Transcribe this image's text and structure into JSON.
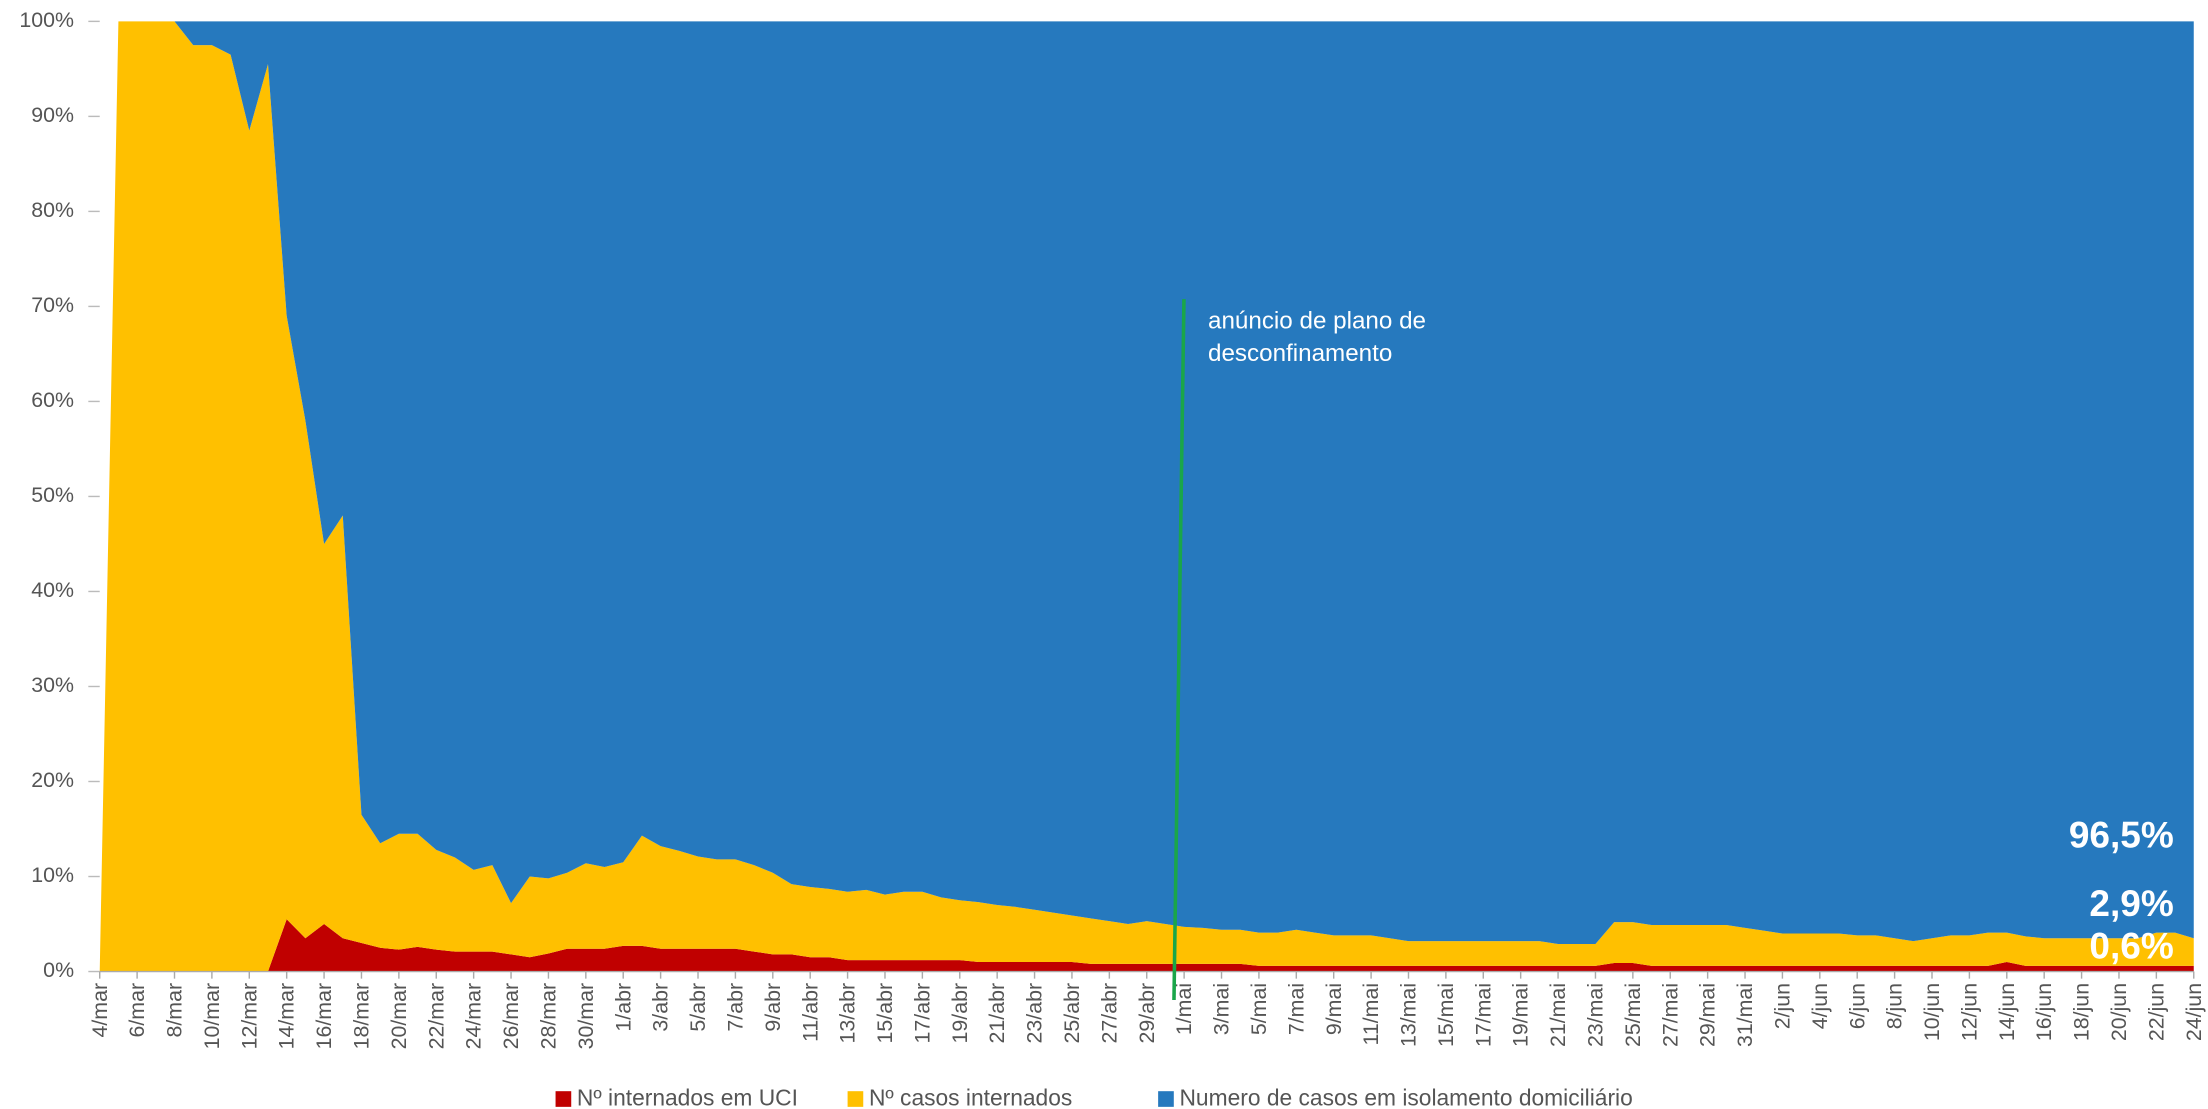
{
  "chart_data": {
    "type": "stacked_area_100",
    "categories": [
      "4/mar",
      null,
      "6/mar",
      null,
      "8/mar",
      null,
      "10/mar",
      null,
      "12/mar",
      null,
      "14/mar",
      null,
      "16/mar",
      null,
      "18/mar",
      null,
      "20/mar",
      null,
      "22/mar",
      null,
      "24/mar",
      null,
      "26/mar",
      null,
      "28/mar",
      null,
      "30/mar",
      null,
      "1/abr",
      null,
      "3/abr",
      null,
      "5/abr",
      null,
      "7/abr",
      null,
      "9/abr",
      null,
      "11/abr",
      null,
      "13/abr",
      null,
      "15/abr",
      null,
      "17/abr",
      null,
      "19/abr",
      null,
      "21/abr",
      null,
      "23/abr",
      null,
      "25/abr",
      null,
      "27/abr",
      null,
      "29/abr",
      null,
      "1/mai",
      null,
      "3/mai",
      null,
      "5/mai",
      null,
      "7/mai",
      null,
      "9/mai",
      null,
      "11/mai",
      null,
      "13/mai",
      null,
      "15/mai",
      null,
      "17/mai",
      null,
      "19/mai",
      null,
      "21/mai",
      null,
      "23/mai",
      null,
      "25/mai",
      null,
      "27/mai",
      null,
      "29/mai",
      null,
      "31/mai",
      null,
      "2/jun",
      null,
      "4/jun",
      null,
      "6/jun",
      null,
      "8/jun",
      null,
      "10/jun",
      null,
      "12/jun",
      null,
      "14/jun",
      null,
      "16/jun",
      null,
      "18/jun",
      null,
      "20/jun",
      null,
      "22/jun",
      null,
      "24/jun"
    ],
    "series": [
      {
        "name": "Nº internados em UCI",
        "color": "#c00000",
        "last_value_label": "0,6%",
        "values": [
          0,
          0,
          0,
          0,
          0,
          0,
          0,
          0,
          0,
          0,
          5.5,
          3.5,
          5,
          3.5,
          3,
          2.5,
          2.3,
          2.6,
          2.3,
          2.1,
          2.1,
          2.1,
          1.8,
          1.5,
          1.9,
          2.4,
          2.4,
          2.4,
          2.7,
          2.7,
          2.4,
          2.4,
          2.4,
          2.4,
          2.4,
          2.1,
          1.8,
          1.8,
          1.5,
          1.5,
          1.2,
          1.2,
          1.2,
          1.2,
          1.2,
          1.2,
          1.2,
          1,
          1,
          1,
          1,
          1,
          1,
          0.8,
          0.8,
          0.8,
          0.8,
          0.8,
          0.8,
          0.8,
          0.8,
          0.8,
          0.6,
          0.6,
          0.6,
          0.6,
          0.6,
          0.6,
          0.6,
          0.6,
          0.6,
          0.6,
          0.6,
          0.6,
          0.6,
          0.6,
          0.6,
          0.6,
          0.6,
          0.6,
          0.6,
          0.9,
          0.9,
          0.6,
          0.6,
          0.6,
          0.6,
          0.6,
          0.6,
          0.6,
          0.6,
          0.6,
          0.6,
          0.6,
          0.6,
          0.6,
          0.6,
          0.6,
          0.6,
          0.6,
          0.6,
          0.6,
          1,
          0.6,
          0.6,
          0.6,
          0.6,
          0.6,
          0.6,
          0.6,
          0.6,
          0.6,
          0.6
        ]
      },
      {
        "name": "Nº casos internados",
        "color": "#ffc000",
        "last_value_label": "2,9%",
        "values": [
          0,
          100,
          100,
          100,
          100,
          97.5,
          97.5,
          96.5,
          88.5,
          95.5,
          63.5,
          54.5,
          40,
          44.5,
          13.5,
          11,
          12.2,
          11.9,
          10.5,
          9.9,
          8.6,
          9.1,
          5.4,
          8.5,
          7.9,
          8,
          9,
          8.6,
          8.8,
          11.6,
          10.8,
          10.3,
          9.7,
          9.4,
          9.4,
          9.1,
          8.6,
          7.4,
          7.4,
          7.2,
          7.2,
          7.4,
          6.9,
          7.2,
          7.2,
          6.6,
          6.3,
          6.3,
          6,
          5.8,
          5.5,
          5.2,
          4.9,
          4.8,
          4.5,
          4.2,
          4.5,
          4.2,
          3.9,
          3.8,
          3.6,
          3.6,
          3.5,
          3.5,
          3.8,
          3.5,
          3.2,
          3.2,
          3.2,
          2.9,
          2.6,
          2.6,
          2.6,
          2.6,
          2.6,
          2.6,
          2.6,
          2.6,
          2.3,
          2.3,
          2.3,
          4.3,
          4.3,
          4.3,
          4.3,
          4.3,
          4.3,
          4.3,
          4,
          3.7,
          3.4,
          3.4,
          3.4,
          3.4,
          3.2,
          3.2,
          2.9,
          2.6,
          2.9,
          3.2,
          3.2,
          3.5,
          3.1,
          3.1,
          2.9,
          2.9,
          2.9,
          2.9,
          2.9,
          2.9,
          3.5,
          3.5,
          2.9
        ]
      },
      {
        "name": "Numero de casos em isolamento domiciliário",
        "color": "#2679be",
        "last_value_label": "96,5%",
        "values": [
          0,
          0,
          0,
          0,
          0,
          2.5,
          2.5,
          3.5,
          11.5,
          4.5,
          31,
          42,
          55,
          52,
          83.5,
          86.5,
          85.5,
          85.5,
          87.2,
          88,
          89.3,
          88.8,
          92.8,
          90,
          90.2,
          89.6,
          88.6,
          89,
          88.5,
          85.7,
          86.8,
          87.3,
          87.9,
          88.2,
          88.2,
          88.8,
          89.6,
          90.8,
          91.1,
          91.3,
          91.6,
          91.4,
          91.9,
          91.6,
          91.6,
          92.2,
          92.5,
          92.7,
          93,
          93.2,
          93.5,
          93.8,
          94.1,
          94.4,
          94.7,
          95,
          94.7,
          95,
          95.3,
          95.4,
          95.6,
          95.6,
          95.9,
          95.9,
          95.6,
          95.9,
          96.2,
          96.2,
          96.2,
          96.5,
          96.8,
          96.8,
          96.8,
          96.8,
          96.8,
          96.8,
          96.8,
          96.8,
          97.1,
          97.1,
          97.1,
          94.8,
          94.8,
          95.1,
          95.1,
          95.1,
          95.1,
          95.1,
          95.4,
          95.7,
          96,
          96,
          96,
          96,
          96.2,
          96.2,
          96.5,
          96.8,
          96.5,
          96.2,
          96.2,
          95.9,
          95.9,
          96.3,
          96.5,
          96.5,
          96.5,
          96.5,
          96.5,
          96.5,
          95.9,
          95.9,
          96.5
        ]
      }
    ],
    "ylim": [
      0,
      100
    ],
    "yticks": [
      {
        "value": 0,
        "label": "0%"
      },
      {
        "value": 10,
        "label": "10%"
      },
      {
        "value": 20,
        "label": "20%"
      },
      {
        "value": 30,
        "label": "30%"
      },
      {
        "value": 40,
        "label": "40%"
      },
      {
        "value": 50,
        "label": "50%"
      },
      {
        "value": 60,
        "label": "60%"
      },
      {
        "value": 70,
        "label": "70%"
      },
      {
        "value": 80,
        "label": "80%"
      },
      {
        "value": 90,
        "label": "90%"
      },
      {
        "value": 100,
        "label": "100%"
      }
    ],
    "annotation": {
      "text": [
        "anúncio de plano de",
        "desconfinamento"
      ],
      "category_index": 57,
      "color": "#1aa64a"
    },
    "legend": "bottom"
  }
}
